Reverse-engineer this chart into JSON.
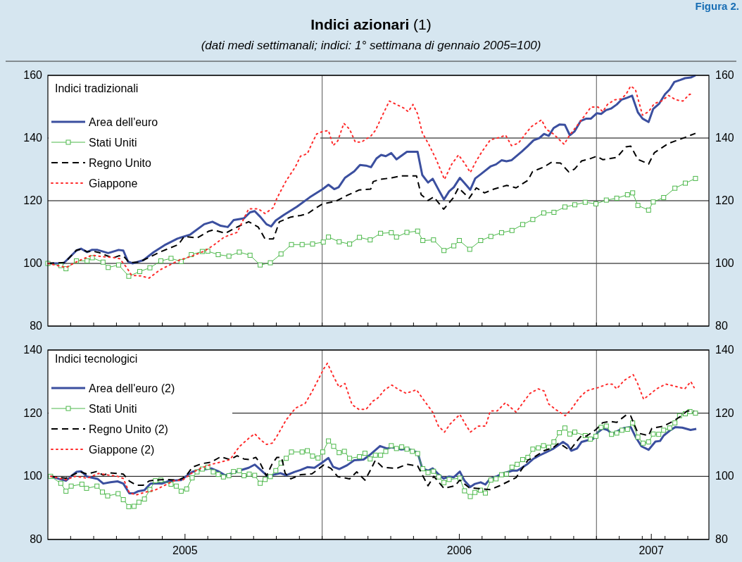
{
  "chart_data": [
    {
      "type": "line",
      "title": "Indici azionari (1)",
      "subtitle": "(dati medi settimanali;  indici: 1° settimana di gennaio 2005=100)",
      "annotations": [
        "Figura 2.",
        "Indici tradizionali"
      ],
      "xlim": [
        2005,
        2007.41
      ],
      "xticks": [
        {
          "value": 2005.083,
          "label": null
        },
        {
          "value": 2005.167,
          "label": null
        },
        {
          "value": 2005.25,
          "label": null
        },
        {
          "value": 2005.333,
          "label": null
        },
        {
          "value": 2005.417,
          "label": null
        },
        {
          "value": 2005.5,
          "label": null
        },
        {
          "value": 2005.583,
          "label": null
        },
        {
          "value": 2005.667,
          "label": null
        },
        {
          "value": 2005.75,
          "label": null
        },
        {
          "value": 2005.833,
          "label": null
        },
        {
          "value": 2005.917,
          "label": null
        },
        {
          "value": 2006,
          "label": null
        },
        {
          "value": 2006.083,
          "label": null
        },
        {
          "value": 2006.167,
          "label": null
        },
        {
          "value": 2006.25,
          "label": null
        },
        {
          "value": 2006.333,
          "label": null
        },
        {
          "value": 2006.417,
          "label": null
        },
        {
          "value": 2006.5,
          "label": null
        },
        {
          "value": 2006.583,
          "label": null
        },
        {
          "value": 2006.667,
          "label": null
        },
        {
          "value": 2006.75,
          "label": null
        },
        {
          "value": 2006.833,
          "label": null
        },
        {
          "value": 2006.917,
          "label": null
        },
        {
          "value": 2007,
          "label": null
        },
        {
          "value": 2007.083,
          "label": null
        },
        {
          "value": 2007.167,
          "label": null
        },
        {
          "value": 2007.25,
          "label": null
        },
        {
          "value": 2007.333,
          "label": null
        }
      ],
      "ylim": [
        80,
        160
      ],
      "yticks": [
        80,
        100,
        120,
        140,
        160
      ],
      "y2lim": [
        80,
        160
      ],
      "y2ticks": [
        80,
        100,
        120,
        140,
        160
      ],
      "tick_labels": "y",
      "grid": "y",
      "legend": "top left",
      "ref_lines": [
        {
          "axis": "x",
          "value": 2006,
          "color": "#555555"
        },
        {
          "axis": "x",
          "value": 2007,
          "color": "#555555"
        }
      ],
      "series": [
        {
          "name": "Area dell'euro",
          "color": "#3b4f9f",
          "line_style": "solid",
          "marker": "none",
          "x": [
            2005.0,
            2005.057,
            2005.104,
            2005.121,
            2005.143,
            2005.16,
            2005.181,
            2005.22,
            2005.258,
            2005.275,
            2005.292,
            2005.309,
            2005.348,
            2005.386,
            2005.429,
            2005.472,
            2005.519,
            2005.57,
            2005.6,
            2005.63,
            2005.656,
            2005.677,
            2005.715,
            2005.737,
            2005.754,
            2005.775,
            2005.797,
            2005.814,
            2005.831,
            2005.861,
            2005.908,
            2005.955,
            2006.002,
            2006.023,
            2006.044,
            2006.06,
            2006.083,
            2006.117,
            2006.138,
            2006.16,
            2006.178,
            2006.198,
            2006.215,
            2006.232,
            2006.252,
            2006.271,
            2006.309,
            2006.348,
            2006.365,
            2006.386,
            2006.403,
            2006.425,
            2006.444,
            2006.463,
            2006.48,
            2006.502,
            2006.519,
            2006.54,
            2006.558,
            2006.579,
            2006.615,
            2006.634,
            2006.654,
            2006.672,
            2006.69,
            2006.728,
            2006.749,
            2006.771,
            2006.792,
            2006.809,
            2006.826,
            2006.844,
            2006.865,
            2006.885,
            2006.903,
            2006.92,
            2006.942,
            2006.963,
            2006.98,
            2007.001,
            2007.017,
            2007.035,
            2007.053,
            2007.074,
            2007.091,
            2007.113,
            2007.13,
            2007.151,
            2007.168,
            2007.19,
            2007.207,
            2007.229,
            2007.25,
            2007.267,
            2007.284,
            2007.305,
            2007.323,
            2007.344,
            2007.361
          ],
          "values": [
            100,
            100,
            104.1,
            104.7,
            103.6,
            104.3,
            104.3,
            103.3,
            104.3,
            104.1,
            100.6,
            100,
            101,
            103.6,
            106,
            107.9,
            109.2,
            112.5,
            113.3,
            112,
            111.6,
            113.8,
            114.4,
            116.3,
            116.7,
            114.8,
            112.5,
            111.8,
            113.7,
            115.5,
            118.1,
            121.1,
            123.7,
            125.1,
            123.7,
            124.3,
            127.3,
            129.4,
            131.4,
            131.2,
            130.7,
            133.5,
            134.6,
            134.2,
            135.2,
            133.2,
            135.6,
            135.6,
            128.2,
            125.8,
            127,
            123.4,
            120.4,
            123,
            124.3,
            127.3,
            125.6,
            123.5,
            127.1,
            128.5,
            131,
            131.6,
            132.9,
            132.6,
            132.9,
            135.7,
            137.4,
            139.3,
            140,
            141.3,
            140.7,
            143.2,
            144.3,
            144.2,
            140.9,
            142.1,
            145.4,
            146.2,
            146.2,
            147.9,
            147.7,
            148.9,
            149.4,
            150.7,
            152.2,
            152.9,
            153.5,
            148.2,
            146.2,
            145.1,
            149.3,
            151,
            154,
            155.5,
            157.9,
            158.5,
            159.1,
            159.3,
            160
          ]
        },
        {
          "name": "Stati Uniti",
          "color": "#4cb84a",
          "line_style": "solid",
          "marker": "square",
          "x": [
            2005.0,
            2005.047,
            2005.066,
            2005.104,
            2005.143,
            2005.162,
            2005.201,
            2005.22,
            2005.258,
            2005.295,
            2005.335,
            2005.372,
            2005.412,
            2005.449,
            2005.486,
            2005.523,
            2005.563,
            2005.583,
            2005.621,
            2005.66,
            2005.698,
            2005.737,
            2005.774,
            2005.811,
            2005.85,
            2005.888,
            2005.927,
            2005.965,
            2006.004,
            2006.023,
            2006.062,
            2006.1,
            2006.136,
            2006.175,
            2006.213,
            2006.252,
            2006.271,
            2006.309,
            2006.348,
            2006.367,
            2006.406,
            2006.444,
            2006.48,
            2006.5,
            2006.538,
            2006.578,
            2006.615,
            2006.654,
            2006.692,
            2006.731,
            2006.768,
            2006.808,
            2006.845,
            2006.885,
            2006.921,
            2006.959,
            2006.998,
            2007.036,
            2007.074,
            2007.113,
            2007.132,
            2007.151,
            2007.19,
            2007.207,
            2007.245,
            2007.286,
            2007.324,
            2007.361
          ],
          "values": [
            100,
            99.3,
            98.3,
            100.8,
            100.8,
            101.8,
            100.4,
            98.7,
            99.5,
            95.9,
            97.4,
            98.6,
            100.8,
            101.6,
            100.6,
            102.8,
            103.8,
            103.9,
            102.8,
            102.3,
            103.6,
            102.6,
            99.5,
            100.2,
            103,
            106,
            106,
            106.2,
            106.8,
            108.4,
            106.9,
            106.2,
            108.3,
            107.5,
            109.6,
            109.8,
            108.4,
            109.9,
            110.3,
            107.3,
            107.5,
            104.1,
            105.6,
            107.3,
            104.5,
            107.3,
            108.6,
            109.8,
            110.5,
            112.4,
            114,
            116.1,
            116.3,
            118,
            118.7,
            119.5,
            119,
            120.2,
            120.8,
            121.9,
            122.5,
            118.5,
            117,
            119.6,
            121,
            124,
            125.6,
            127.1
          ]
        },
        {
          "name": "Regno Unito",
          "color": "#000000",
          "line_style": "dashed",
          "marker": "none",
          "x": [
            2005.0,
            2005.062,
            2005.104,
            2005.124,
            2005.143,
            2005.164,
            2005.185,
            2005.237,
            2005.258,
            2005.275,
            2005.297,
            2005.331,
            2005.365,
            2005.408,
            2005.476,
            2005.497,
            2005.544,
            2005.587,
            2005.604,
            2005.647,
            2005.685,
            2005.732,
            2005.767,
            2005.792,
            2005.822,
            2005.844,
            2005.886,
            2005.921,
            2005.946,
            2005.972,
            2006.002,
            2006.049,
            2006.091,
            2006.134,
            2006.177,
            2006.186,
            2006.211,
            2006.254,
            2006.288,
            2006.344,
            2006.361,
            2006.386,
            2006.407,
            2006.443,
            2006.477,
            2006.497,
            2006.536,
            2006.562,
            2006.592,
            2006.626,
            2006.673,
            2006.707,
            2006.75,
            2006.767,
            2006.809,
            2006.835,
            2006.869,
            2006.899,
            2006.92,
            2006.946,
            2006.98,
            2007.001,
            2007.023,
            2007.074,
            2007.108,
            2007.125,
            2007.151,
            2007.19,
            2007.211,
            2007.263,
            2007.323,
            2007.361
          ],
          "values": [
            100,
            100.3,
            104.2,
            104.6,
            103.7,
            103.9,
            103.5,
            101.7,
            102.4,
            102.4,
            100.2,
            100.4,
            101.7,
            103.6,
            106,
            108.6,
            108.1,
            110.3,
            110.7,
            109.6,
            111.4,
            113.3,
            111.6,
            107.8,
            107.8,
            113.3,
            114.8,
            115.3,
            115.8,
            117.4,
            119,
            119.8,
            121.7,
            123.4,
            123.7,
            126.1,
            126.8,
            127.3,
            127.9,
            127.9,
            121.9,
            120.1,
            121.2,
            117.3,
            120.8,
            124.1,
            120.8,
            124.1,
            122.5,
            123.7,
            124.9,
            124.1,
            126.5,
            129.3,
            130.8,
            132.2,
            132,
            129.2,
            130.1,
            132.7,
            133.5,
            134.2,
            133.1,
            133.8,
            137.2,
            137.4,
            133.2,
            131.7,
            135.3,
            138.3,
            140.2,
            141.5
          ]
        },
        {
          "name": "Giappone",
          "color": "#ff2b2b",
          "line_style": "dotted",
          "marker": "none",
          "x": [
            2005.0,
            2005.066,
            2005.109,
            2005.16,
            2005.194,
            2005.237,
            2005.262,
            2005.288,
            2005.305,
            2005.339,
            2005.369,
            2005.408,
            2005.442,
            2005.476,
            2005.527,
            2005.57,
            2005.604,
            2005.643,
            2005.69,
            2005.732,
            2005.767,
            2005.792,
            2005.822,
            2005.835,
            2005.869,
            2005.903,
            2005.921,
            2005.946,
            2005.963,
            2005.98,
            2006.002,
            2006.023,
            2006.04,
            2006.057,
            2006.079,
            2006.1,
            2006.121,
            2006.143,
            2006.177,
            2006.194,
            2006.22,
            2006.245,
            2006.271,
            2006.297,
            2006.314,
            2006.331,
            2006.348,
            2006.365,
            2006.391,
            2006.416,
            2006.446,
            2006.472,
            2006.497,
            2006.519,
            2006.54,
            2006.562,
            2006.583,
            2006.613,
            2006.647,
            2006.669,
            2006.69,
            2006.715,
            2006.741,
            2006.762,
            2006.8,
            2006.817,
            2006.843,
            2006.882,
            2006.903,
            2006.929,
            2006.955,
            2006.98,
            2007.006,
            2007.023,
            2007.04,
            2007.066,
            2007.091,
            2007.108,
            2007.125,
            2007.142,
            2007.168,
            2007.19,
            2007.211,
            2007.237,
            2007.263,
            2007.289,
            2007.315,
            2007.34,
            2007.353
          ],
          "values": [
            100,
            98.7,
            100.7,
            102.6,
            102.2,
            101.9,
            101.5,
            98.6,
            96.2,
            96,
            95.3,
            97.9,
            99.4,
            100.9,
            102.4,
            103.9,
            105.8,
            108.4,
            109.9,
            117.4,
            117.4,
            115.9,
            117.8,
            120.8,
            126.4,
            130.9,
            134.2,
            135,
            138.3,
            141.3,
            142.1,
            142.4,
            137.6,
            139.1,
            144.7,
            142.8,
            138.7,
            138.7,
            140.6,
            142.4,
            147.3,
            151.8,
            150.7,
            149.6,
            148.4,
            150.7,
            147.7,
            141.7,
            137.6,
            133.1,
            126.8,
            131.6,
            134.6,
            132,
            129,
            132.7,
            135.7,
            139.4,
            140.2,
            140.9,
            137.6,
            138.3,
            141.3,
            143.6,
            145.8,
            142.8,
            141.3,
            138,
            141,
            143.9,
            146.9,
            149.9,
            149.9,
            148.4,
            150.7,
            152.2,
            152.5,
            154,
            156.6,
            155.5,
            147.3,
            148.4,
            151,
            151.8,
            153.6,
            152.2,
            151.8,
            154,
            153.6
          ]
        }
      ]
    },
    {
      "type": "line",
      "title": "Indici tecnologici",
      "xlim": [
        2005,
        2007.41
      ],
      "xticks": [
        {
          "value": 2005.083,
          "label": null
        },
        {
          "value": 2005.167,
          "label": null
        },
        {
          "value": 2005.25,
          "label": null
        },
        {
          "value": 2005.333,
          "label": null
        },
        {
          "value": 2005.417,
          "label": null
        },
        {
          "value": 2005.5,
          "label": "2005"
        },
        {
          "value": 2005.583,
          "label": null
        },
        {
          "value": 2005.667,
          "label": null
        },
        {
          "value": 2005.75,
          "label": null
        },
        {
          "value": 2005.833,
          "label": null
        },
        {
          "value": 2005.917,
          "label": null
        },
        {
          "value": 2006,
          "label": null
        },
        {
          "value": 2006.083,
          "label": null
        },
        {
          "value": 2006.167,
          "label": null
        },
        {
          "value": 2006.25,
          "label": null
        },
        {
          "value": 2006.333,
          "label": null
        },
        {
          "value": 2006.417,
          "label": null
        },
        {
          "value": 2006.5,
          "label": "2006"
        },
        {
          "value": 2006.583,
          "label": null
        },
        {
          "value": 2006.667,
          "label": null
        },
        {
          "value": 2006.75,
          "label": null
        },
        {
          "value": 2006.833,
          "label": null
        },
        {
          "value": 2006.917,
          "label": null
        },
        {
          "value": 2007,
          "label": null
        },
        {
          "value": 2007.083,
          "label": null
        },
        {
          "value": 2007.167,
          "label": null
        },
        {
          "value": 2007.2,
          "label": "2007"
        },
        {
          "value": 2007.25,
          "label": null
        },
        {
          "value": 2007.333,
          "label": null
        }
      ],
      "ylim": [
        80,
        140
      ],
      "yticks": [
        80,
        100,
        120,
        140
      ],
      "y2lim": [
        80,
        140
      ],
      "y2ticks": [
        80,
        100,
        120,
        140
      ],
      "grid": "y",
      "legend": "top left",
      "ref_lines": [
        {
          "axis": "x",
          "value": 2006,
          "color": "#555555"
        },
        {
          "axis": "x",
          "value": 2007,
          "color": "#555555"
        }
      ],
      "series": [
        {
          "name": "Area dell'euro (2)",
          "color": "#3b4f9f",
          "line_style": "solid",
          "marker": "none",
          "x": [
            2005.01,
            2005.04,
            2005.066,
            2005.083,
            2005.104,
            2005.121,
            2005.143,
            2005.181,
            2005.202,
            2005.228,
            2005.254,
            2005.275,
            2005.297,
            2005.313,
            2005.33,
            2005.352,
            2005.374,
            2005.399,
            2005.416,
            2005.438,
            2005.459,
            2005.485,
            2005.502,
            2005.527,
            2005.544,
            2005.57,
            2005.596,
            2005.621,
            2005.647,
            2005.673,
            2005.698,
            2005.732,
            2005.754,
            2005.775,
            2005.805,
            2005.822,
            2005.848,
            2005.869,
            2005.899,
            2005.921,
            2005.946,
            2005.972,
            2006.002,
            2006.023,
            2006.04,
            2006.062,
            2006.091,
            2006.117,
            2006.151,
            2006.177,
            2006.211,
            2006.237,
            2006.253,
            2006.288,
            2006.314,
            2006.348,
            2006.365,
            2006.386,
            2006.403,
            2006.42,
            2006.442,
            2006.463,
            2006.48,
            2006.502,
            2006.519,
            2006.54,
            2006.557,
            2006.578,
            2006.595,
            2006.612,
            2006.634,
            2006.655,
            2006.694,
            2006.711,
            2006.728,
            2006.75,
            2006.771,
            2006.792,
            2006.818,
            2006.844,
            2006.878,
            2006.895,
            2006.908,
            2006.929,
            2006.946,
            2006.967,
            2006.989,
            2007.006,
            2007.023,
            2007.04,
            2007.057,
            2007.083,
            2007.1,
            2007.125,
            2007.142,
            2007.164,
            2007.19,
            2007.215,
            2007.232,
            2007.245,
            2007.271,
            2007.288,
            2007.313,
            2007.343,
            2007.364
          ],
          "values": [
            100,
            99.2,
            98.6,
            99.9,
            101.4,
            101.6,
            99.9,
            99.2,
            97.7,
            98.1,
            98.4,
            97.7,
            94.6,
            94.6,
            95.3,
            95.6,
            97.7,
            97.8,
            97.7,
            98.4,
            98.7,
            98.8,
            99.9,
            101.4,
            101.8,
            102.2,
            102.5,
            101.6,
            100.3,
            101,
            101.8,
            102.7,
            103.7,
            102.1,
            99.7,
            100.5,
            101,
            100.3,
            101.4,
            102,
            102.9,
            102.7,
            104.5,
            105.8,
            103,
            102.3,
            103.5,
            105.1,
            105.3,
            107,
            109.6,
            108.8,
            109.2,
            108.5,
            108.7,
            107.5,
            102.5,
            101.8,
            102.5,
            101,
            99.3,
            99.9,
            99.7,
            101.5,
            98.6,
            96.6,
            97.6,
            98.1,
            97.4,
            99.2,
            99.9,
            100.8,
            101.8,
            101.8,
            102.7,
            104,
            105.6,
            106.6,
            107.7,
            108.8,
            110.9,
            109.9,
            108.1,
            108.8,
            110.9,
            111.4,
            111.9,
            114,
            115.1,
            114.7,
            113.4,
            114.6,
            115.3,
            115.6,
            112.6,
            109.5,
            108.4,
            111,
            111.2,
            112.9,
            114.7,
            115.6,
            115.4,
            114.7,
            115
          ]
        },
        {
          "name": "Stati Uniti",
          "color": "#4cb84a",
          "line_style": "solid",
          "marker": "square",
          "x": [
            2005.01,
            2005.047,
            2005.066,
            2005.085,
            2005.124,
            2005.141,
            2005.179,
            2005.199,
            2005.218,
            2005.256,
            2005.275,
            2005.295,
            2005.314,
            2005.332,
            2005.352,
            2005.372,
            2005.392,
            2005.412,
            2005.449,
            2005.468,
            2005.486,
            2005.506,
            2005.526,
            2005.544,
            2005.563,
            2005.583,
            2005.603,
            2005.621,
            2005.64,
            2005.66,
            2005.677,
            2005.698,
            2005.715,
            2005.734,
            2005.754,
            2005.774,
            2005.792,
            2005.811,
            2005.831,
            2005.85,
            2005.869,
            2005.888,
            2005.927,
            2005.946,
            2005.965,
            2005.985,
            2006.002,
            2006.023,
            2006.042,
            2006.062,
            2006.081,
            2006.1,
            2006.136,
            2006.156,
            2006.175,
            2006.194,
            2006.213,
            2006.232,
            2006.252,
            2006.271,
            2006.29,
            2006.309,
            2006.329,
            2006.348,
            2006.367,
            2006.386,
            2006.406,
            2006.425,
            2006.444,
            2006.463,
            2006.502,
            2006.519,
            2006.54,
            2006.557,
            2006.577,
            2006.595,
            2006.615,
            2006.634,
            2006.654,
            2006.672,
            2006.692,
            2006.711,
            2006.731,
            2006.75,
            2006.768,
            2006.788,
            2006.807,
            2006.826,
            2006.845,
            2006.865,
            2006.885,
            2006.903,
            2006.921,
            2006.959,
            2006.978,
            2006.998,
            2007.017,
            2007.036,
            2007.055,
            2007.074,
            2007.093,
            2007.113,
            2007.132,
            2007.151,
            2007.17,
            2007.19,
            2007.207,
            2007.227,
            2007.245,
            2007.267,
            2007.286,
            2007.303,
            2007.324,
            2007.341,
            2007.361
          ],
          "values": [
            100,
            97.8,
            95.3,
            96.9,
            97.5,
            96.2,
            96.9,
            95,
            93.8,
            94.5,
            92.6,
            90.4,
            90.5,
            91.8,
            92.8,
            95.8,
            98.6,
            98.8,
            97.5,
            96.9,
            95.3,
            96,
            99.5,
            101.4,
            102.3,
            102.9,
            101.4,
            100.6,
            99.8,
            100.2,
            101.5,
            101.8,
            100.2,
            100.7,
            100.3,
            97.8,
            99,
            99.9,
            101.8,
            104.2,
            105.7,
            107.7,
            107.7,
            108.1,
            106.4,
            105.8,
            107.7,
            111.2,
            109.5,
            107.5,
            107.9,
            105.7,
            106.2,
            107.3,
            105.5,
            106.7,
            106.7,
            107.9,
            109.7,
            108.8,
            109.3,
            108.6,
            107.9,
            107.2,
            102.4,
            101.2,
            101.6,
            99.8,
            98,
            99,
            99.4,
            95.4,
            93.6,
            94.9,
            95.6,
            94.7,
            98.8,
            99.2,
            100.5,
            100.7,
            102.9,
            103.8,
            105.3,
            106,
            108.6,
            109,
            109.7,
            109.2,
            110.9,
            113.8,
            115.3,
            113.4,
            114,
            112.9,
            111.8,
            112.7,
            115.5,
            115.9,
            113.3,
            113.7,
            114.6,
            114.9,
            116.9,
            112.4,
            110.5,
            110.9,
            113.4,
            113.3,
            114.6,
            115.3,
            116.9,
            119.2,
            119.8,
            120.5,
            120
          ]
        },
        {
          "name": "Regno Unito (2)",
          "color": "#000000",
          "line_style": "dashed",
          "marker": "none",
          "x": [
            2005.01,
            2005.066,
            2005.117,
            2005.143,
            2005.177,
            2005.202,
            2005.228,
            2005.275,
            2005.297,
            2005.322,
            2005.348,
            2005.369,
            2005.39,
            2005.433,
            2005.476,
            2005.502,
            2005.527,
            2005.561,
            2005.596,
            2005.63,
            2005.664,
            2005.69,
            2005.715,
            2005.737,
            2005.758,
            2005.775,
            2005.797,
            2005.818,
            2005.835,
            2005.852,
            2005.865,
            2005.886,
            2005.921,
            2005.963,
            2006.006,
            2006.032,
            2006.057,
            2006.1,
            2006.126,
            2006.156,
            2006.177,
            2006.194,
            2006.22,
            2006.271,
            2006.309,
            2006.348,
            2006.386,
            2006.407,
            2006.444,
            2006.484,
            2006.502,
            2006.536,
            2006.57,
            2006.613,
            2006.647,
            2006.707,
            2006.75,
            2006.775,
            2006.809,
            2006.844,
            2006.861,
            2006.878,
            2006.903,
            2006.929,
            2006.946,
            2006.963,
            2006.998,
            2007.023,
            2007.049,
            2007.074,
            2007.108,
            2007.125,
            2007.151,
            2007.19,
            2007.202,
            2007.245,
            2007.279,
            2007.305,
            2007.331,
            2007.356
          ],
          "values": [
            100,
            99.4,
            101.5,
            100.7,
            101.5,
            100.4,
            101.1,
            100.7,
            98.5,
            97.2,
            97.2,
            98.5,
            98.8,
            99,
            98.8,
            99.9,
            102.9,
            104,
            104.5,
            106.2,
            105.3,
            106.5,
            105.5,
            105.3,
            106,
            104,
            100.1,
            104,
            106,
            106,
            101,
            99.2,
            100.5,
            100.8,
            103.6,
            102.5,
            99.9,
            99.2,
            101.4,
            98.8,
            102.1,
            105.1,
            102.9,
            102.5,
            103.8,
            103.3,
            97,
            100,
            96.2,
            97,
            98.8,
            96.4,
            96.1,
            95.8,
            97,
            99.6,
            105.1,
            106.2,
            108.1,
            109.2,
            110.4,
            109.7,
            108.2,
            111.2,
            112.9,
            112.7,
            114.8,
            117,
            117.4,
            117.1,
            119.4,
            119.1,
            113.7,
            112.9,
            115.2,
            115.9,
            117.4,
            118.9,
            120.7,
            120.7
          ]
        },
        {
          "name": "Giappone (2)",
          "color": "#ff2b2b",
          "line_style": "dotted",
          "marker": "none",
          "x": [
            2005.01,
            2005.066,
            2005.1,
            2005.143,
            2005.185,
            2005.22,
            2005.254,
            2005.275,
            2005.297,
            2005.322,
            2005.356,
            2005.39,
            2005.425,
            2005.459,
            2005.493,
            2005.527,
            2005.561,
            2005.596,
            2005.63,
            2005.664,
            2005.698,
            2005.732,
            2005.754,
            2005.775,
            2005.797,
            2005.818,
            2005.835,
            2005.869,
            2005.903,
            2005.938,
            2005.963,
            2005.989,
            2006.006,
            2006.019,
            2006.044,
            2006.062,
            2006.083,
            2006.109,
            2006.134,
            2006.16,
            2006.185,
            2006.203,
            2006.228,
            2006.254,
            2006.28,
            2006.306,
            2006.344,
            2006.365,
            2006.403,
            2006.424,
            2006.446,
            2006.467,
            2006.502,
            2006.519,
            2006.54,
            2006.57,
            2006.596,
            2006.613,
            2006.638,
            2006.668,
            2006.707,
            2006.732,
            2006.758,
            2006.788,
            2006.809,
            2006.826,
            2006.852,
            2006.886,
            2006.907,
            2006.937,
            2006.963,
            2006.988,
            2007.006,
            2007.04,
            2007.057,
            2007.074,
            2007.1,
            2007.134,
            2007.151,
            2007.172,
            2007.194,
            2007.219,
            2007.253,
            2007.288,
            2007.322,
            2007.344,
            2007.356
          ],
          "values": [
            100,
            98.9,
            100,
            99.4,
            100.9,
            100.4,
            100,
            99.3,
            94.8,
            94.1,
            95,
            95.6,
            97.1,
            98.6,
            98.9,
            101.2,
            102.7,
            103.8,
            104.5,
            105.3,
            109.4,
            112,
            113.5,
            111.6,
            110.1,
            110.5,
            112.7,
            117.9,
            121.6,
            123.1,
            126.8,
            131.2,
            134.1,
            135.8,
            131.2,
            128.2,
            129.4,
            122.7,
            121.2,
            121.2,
            123.8,
            124.8,
            127.4,
            128.9,
            127.4,
            126.3,
            127.4,
            124.8,
            120.3,
            115.9,
            114,
            116.6,
            119.6,
            117,
            114,
            115.9,
            115.9,
            120.7,
            120.7,
            123.3,
            120.3,
            123.3,
            126.3,
            127.7,
            127,
            122.9,
            121.1,
            119.2,
            121.1,
            124.8,
            127,
            127.7,
            128.1,
            129.2,
            129.2,
            127.7,
            130.3,
            132.2,
            129.2,
            124.4,
            125.9,
            127.7,
            129.2,
            128.5,
            127.7,
            130,
            128.1
          ]
        }
      ]
    }
  ]
}
